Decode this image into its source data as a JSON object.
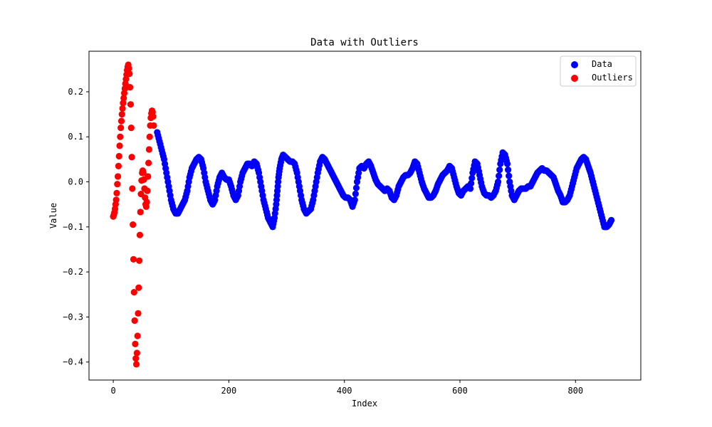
{
  "chart_data": {
    "type": "scatter",
    "title": "Data with Outliers",
    "xlabel": "Index",
    "ylabel": "Value",
    "xlim": [
      -42,
      913
    ],
    "ylim": [
      -0.44,
      0.29
    ],
    "xticks": [
      0,
      200,
      400,
      600,
      800
    ],
    "xtick_labels": [
      "0",
      "200",
      "400",
      "600",
      "800"
    ],
    "yticks": [
      -0.4,
      -0.3,
      -0.2,
      -0.1,
      0.0,
      0.1,
      0.2
    ],
    "ytick_labels": [
      "−0.4",
      "−0.3",
      "−0.2",
      "−0.1",
      "0.0",
      "0.1",
      "0.2"
    ],
    "grid": false,
    "legend_position": "top-right",
    "series": [
      {
        "name": "Data",
        "color": "#0000ff",
        "points": [
          [
            76,
            0.11
          ],
          [
            80,
            0.09
          ],
          [
            84,
            0.07
          ],
          [
            88,
            0.05
          ],
          [
            92,
            0.02
          ],
          [
            96,
            -0.01
          ],
          [
            100,
            -0.04
          ],
          [
            104,
            -0.06
          ],
          [
            108,
            -0.07
          ],
          [
            112,
            -0.07
          ],
          [
            116,
            -0.06
          ],
          [
            120,
            -0.05
          ],
          [
            124,
            -0.04
          ],
          [
            128,
            -0.02
          ],
          [
            132,
            0.01
          ],
          [
            136,
            0.03
          ],
          [
            140,
            0.04
          ],
          [
            144,
            0.05
          ],
          [
            148,
            0.055
          ],
          [
            152,
            0.05
          ],
          [
            156,
            0.03
          ],
          [
            160,
            0.0
          ],
          [
            164,
            -0.02
          ],
          [
            168,
            -0.04
          ],
          [
            172,
            -0.05
          ],
          [
            176,
            -0.04
          ],
          [
            180,
            -0.01
          ],
          [
            184,
            0.01
          ],
          [
            188,
            0.02
          ],
          [
            192,
            0.01
          ],
          [
            196,
            0.005
          ],
          [
            200,
            0.005
          ],
          [
            204,
            -0.01
          ],
          [
            208,
            -0.03
          ],
          [
            212,
            -0.04
          ],
          [
            216,
            -0.03
          ],
          [
            220,
            0.0
          ],
          [
            224,
            0.02
          ],
          [
            228,
            0.03
          ],
          [
            232,
            0.04
          ],
          [
            236,
            0.04
          ],
          [
            240,
            0.035
          ],
          [
            244,
            0.045
          ],
          [
            248,
            0.04
          ],
          [
            252,
            0.02
          ],
          [
            256,
            -0.01
          ],
          [
            260,
            -0.04
          ],
          [
            264,
            -0.06
          ],
          [
            268,
            -0.08
          ],
          [
            272,
            -0.09
          ],
          [
            276,
            -0.1
          ],
          [
            279,
            -0.08
          ],
          [
            282,
            -0.05
          ],
          [
            284,
            -0.02
          ],
          [
            286,
            0.01
          ],
          [
            288,
            0.03
          ],
          [
            291,
            0.05
          ],
          [
            294,
            0.06
          ],
          [
            298,
            0.055
          ],
          [
            302,
            0.05
          ],
          [
            306,
            0.045
          ],
          [
            310,
            0.045
          ],
          [
            314,
            0.04
          ],
          [
            318,
            0.02
          ],
          [
            322,
            -0.01
          ],
          [
            326,
            -0.04
          ],
          [
            330,
            -0.06
          ],
          [
            334,
            -0.07
          ],
          [
            338,
            -0.065
          ],
          [
            342,
            -0.06
          ],
          [
            346,
            -0.04
          ],
          [
            350,
            -0.01
          ],
          [
            354,
            0.02
          ],
          [
            358,
            0.045
          ],
          [
            362,
            0.055
          ],
          [
            366,
            0.05
          ],
          [
            370,
            0.04
          ],
          [
            374,
            0.03
          ],
          [
            378,
            0.02
          ],
          [
            382,
            0.01
          ],
          [
            386,
            0.0
          ],
          [
            390,
            -0.01
          ],
          [
            394,
            -0.02
          ],
          [
            398,
            -0.03
          ],
          [
            402,
            -0.035
          ],
          [
            406,
            -0.035
          ],
          [
            410,
            -0.04
          ],
          [
            414,
            -0.055
          ],
          [
            418,
            -0.04
          ],
          [
            422,
            0.0
          ],
          [
            426,
            0.03
          ],
          [
            430,
            0.035
          ],
          [
            434,
            0.03
          ],
          [
            438,
            0.04
          ],
          [
            442,
            0.045
          ],
          [
            446,
            0.035
          ],
          [
            450,
            0.02
          ],
          [
            454,
            0.005
          ],
          [
            458,
            -0.005
          ],
          [
            462,
            -0.01
          ],
          [
            466,
            -0.015
          ],
          [
            470,
            -0.02
          ],
          [
            474,
            -0.015
          ],
          [
            478,
            -0.02
          ],
          [
            482,
            -0.035
          ],
          [
            486,
            -0.04
          ],
          [
            490,
            -0.03
          ],
          [
            494,
            -0.01
          ],
          [
            498,
            0.0
          ],
          [
            502,
            0.01
          ],
          [
            506,
            0.015
          ],
          [
            510,
            0.015
          ],
          [
            514,
            0.02
          ],
          [
            518,
            0.03
          ],
          [
            522,
            0.045
          ],
          [
            526,
            0.04
          ],
          [
            530,
            0.02
          ],
          [
            534,
            0.0
          ],
          [
            538,
            -0.015
          ],
          [
            542,
            -0.025
          ],
          [
            546,
            -0.035
          ],
          [
            550,
            -0.035
          ],
          [
            554,
            -0.03
          ],
          [
            558,
            -0.02
          ],
          [
            562,
            -0.005
          ],
          [
            566,
            0.005
          ],
          [
            570,
            0.015
          ],
          [
            574,
            0.02
          ],
          [
            578,
            0.025
          ],
          [
            582,
            0.035
          ],
          [
            586,
            0.03
          ],
          [
            590,
            0.01
          ],
          [
            594,
            -0.01
          ],
          [
            598,
            -0.025
          ],
          [
            602,
            -0.03
          ],
          [
            606,
            -0.02
          ],
          [
            610,
            -0.015
          ],
          [
            614,
            -0.01
          ],
          [
            618,
            -0.015
          ],
          [
            622,
            0.02
          ],
          [
            626,
            0.045
          ],
          [
            630,
            0.04
          ],
          [
            634,
            0.015
          ],
          [
            638,
            -0.01
          ],
          [
            642,
            -0.025
          ],
          [
            646,
            -0.03
          ],
          [
            650,
            -0.03
          ],
          [
            654,
            -0.035
          ],
          [
            658,
            -0.03
          ],
          [
            662,
            -0.02
          ],
          [
            666,
            0.0
          ],
          [
            670,
            0.04
          ],
          [
            674,
            0.065
          ],
          [
            678,
            0.06
          ],
          [
            682,
            0.04
          ],
          [
            686,
            0.0
          ],
          [
            690,
            -0.03
          ],
          [
            694,
            -0.04
          ],
          [
            698,
            -0.03
          ],
          [
            702,
            -0.02
          ],
          [
            706,
            -0.015
          ],
          [
            710,
            -0.015
          ],
          [
            714,
            -0.015
          ],
          [
            718,
            -0.01
          ],
          [
            722,
            -0.01
          ],
          [
            726,
            0.0
          ],
          [
            730,
            0.01
          ],
          [
            734,
            0.02
          ],
          [
            738,
            0.025
          ],
          [
            742,
            0.03
          ],
          [
            746,
            0.025
          ],
          [
            750,
            0.025
          ],
          [
            754,
            0.02
          ],
          [
            758,
            0.015
          ],
          [
            762,
            0.01
          ],
          [
            766,
            -0.005
          ],
          [
            770,
            -0.02
          ],
          [
            774,
            -0.03
          ],
          [
            778,
            -0.045
          ],
          [
            782,
            -0.045
          ],
          [
            786,
            -0.04
          ],
          [
            790,
            -0.03
          ],
          [
            794,
            -0.01
          ],
          [
            798,
            0.01
          ],
          [
            802,
            0.03
          ],
          [
            806,
            0.04
          ],
          [
            810,
            0.05
          ],
          [
            814,
            0.055
          ],
          [
            818,
            0.05
          ],
          [
            822,
            0.035
          ],
          [
            826,
            0.02
          ],
          [
            830,
            0.0
          ],
          [
            834,
            -0.02
          ],
          [
            838,
            -0.04
          ],
          [
            842,
            -0.06
          ],
          [
            846,
            -0.08
          ],
          [
            850,
            -0.1
          ],
          [
            854,
            -0.1
          ],
          [
            858,
            -0.095
          ],
          [
            862,
            -0.085
          ]
        ]
      },
      {
        "name": "Outliers",
        "color": "#ff0000",
        "points": [
          [
            0,
            -0.077
          ],
          [
            1,
            -0.073
          ],
          [
            2,
            -0.068
          ],
          [
            3,
            -0.06
          ],
          [
            4,
            -0.05
          ],
          [
            5,
            -0.04
          ],
          [
            6,
            -0.025
          ],
          [
            7,
            -0.005
          ],
          [
            8,
            0.012
          ],
          [
            9,
            0.035
          ],
          [
            10,
            0.057
          ],
          [
            11,
            0.08
          ],
          [
            12,
            0.1
          ],
          [
            13,
            0.12
          ],
          [
            14,
            0.135
          ],
          [
            15,
            0.15
          ],
          [
            16,
            0.163
          ],
          [
            17,
            0.175
          ],
          [
            18,
            0.186
          ],
          [
            19,
            0.197
          ],
          [
            20,
            0.207
          ],
          [
            21,
            0.218
          ],
          [
            22,
            0.228
          ],
          [
            23,
            0.238
          ],
          [
            24,
            0.248
          ],
          [
            25,
            0.255
          ],
          [
            26,
            0.26
          ],
          [
            27,
            0.252
          ],
          [
            28,
            0.24
          ],
          [
            29,
            0.21
          ],
          [
            30,
            0.172
          ],
          [
            31,
            0.12
          ],
          [
            32,
            0.055
          ],
          [
            33,
            -0.015
          ],
          [
            34,
            -0.095
          ],
          [
            35,
            -0.172
          ],
          [
            36,
            -0.245
          ],
          [
            37,
            -0.308
          ],
          [
            38,
            -0.36
          ],
          [
            39,
            -0.392
          ],
          [
            40,
            -0.405
          ],
          [
            41,
            -0.38
          ],
          [
            42,
            -0.342
          ],
          [
            43,
            -0.292
          ],
          [
            44,
            -0.235
          ],
          [
            45,
            -0.175
          ],
          [
            46,
            -0.118
          ],
          [
            47,
            -0.067
          ],
          [
            48,
            -0.027
          ],
          [
            49,
            0.003
          ],
          [
            50,
            0.02
          ],
          [
            51,
            0.025
          ],
          [
            52,
            0.02
          ],
          [
            53,
            0.005
          ],
          [
            54,
            -0.015
          ],
          [
            55,
            -0.035
          ],
          [
            56,
            -0.05
          ],
          [
            57,
            -0.055
          ],
          [
            58,
            -0.045
          ],
          [
            59,
            -0.02
          ],
          [
            60,
            0.012
          ],
          [
            61,
            0.042
          ],
          [
            62,
            0.072
          ],
          [
            63,
            0.1
          ],
          [
            64,
            0.125
          ],
          [
            65,
            0.142
          ],
          [
            66,
            0.152
          ],
          [
            67,
            0.158
          ],
          [
            68,
            0.155
          ],
          [
            69,
            0.145
          ],
          [
            70,
            0.125
          ]
        ]
      }
    ]
  }
}
